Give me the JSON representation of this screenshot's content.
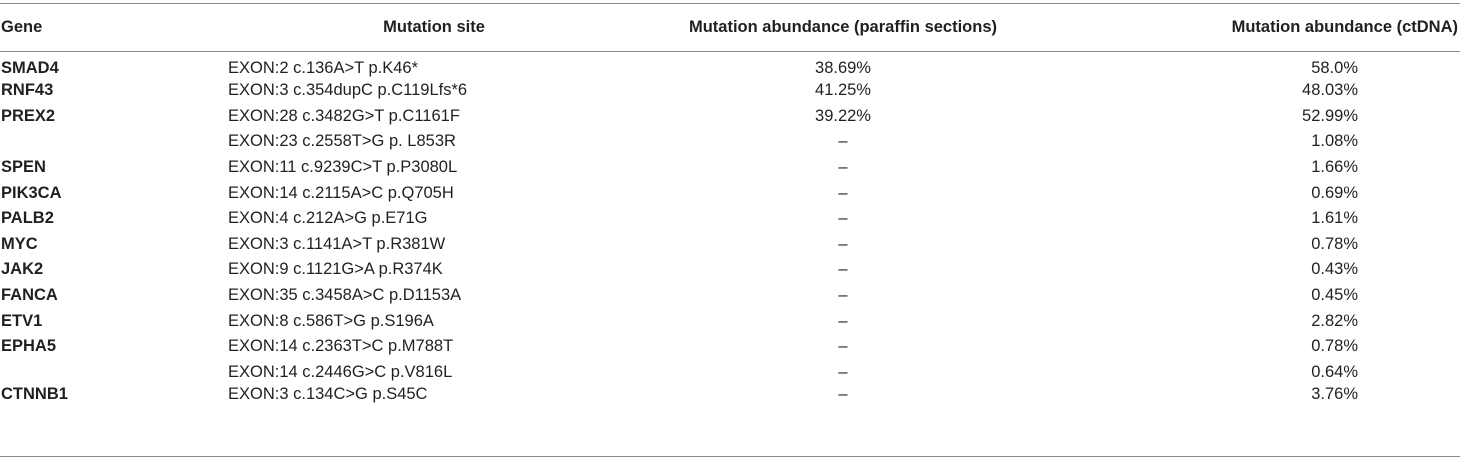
{
  "table": {
    "headers": {
      "gene": "Gene",
      "site": "Mutation site",
      "paraffin": "Mutation abundance (paraffin sections)",
      "ctdna": "Mutation abundance (ctDNA)"
    },
    "rows": [
      {
        "gene": "SMAD4",
        "site": "EXON:2 c.136A>T p.K46*",
        "paraffin": "38.69%",
        "ctdna": "58.0%"
      },
      {
        "gene": "RNF43",
        "site": "EXON:3 c.354dupC p.C119Lfs*6",
        "paraffin": "41.25%",
        "ctdna": "48.03%"
      },
      {
        "gene": "PREX2",
        "site": "EXON:28 c.3482G>T p.C1161F",
        "paraffin": "39.22%",
        "ctdna": "52.99%"
      },
      {
        "gene": "",
        "site": "EXON:23 c.2558T>G p. L853R",
        "paraffin": "–",
        "ctdna": "1.08%"
      },
      {
        "gene": "SPEN",
        "site": "EXON:11 c.9239C>T p.P3080L",
        "paraffin": "–",
        "ctdna": "1.66%"
      },
      {
        "gene": "PIK3CA",
        "site": "EXON:14 c.2115A>C p.Q705H",
        "paraffin": "–",
        "ctdna": "0.69%"
      },
      {
        "gene": "PALB2",
        "site": "EXON:4 c.212A>G p.E71G",
        "paraffin": "–",
        "ctdna": "1.61%"
      },
      {
        "gene": "MYC",
        "site": "EXON:3 c.1141A>T p.R381W",
        "paraffin": "–",
        "ctdna": "0.78%"
      },
      {
        "gene": "JAK2",
        "site": "EXON:9 c.1121G>A p.R374K",
        "paraffin": "–",
        "ctdna": "0.43%"
      },
      {
        "gene": "FANCA",
        "site": "EXON:35 c.3458A>C p.D1153A",
        "paraffin": "–",
        "ctdna": "0.45%"
      },
      {
        "gene": "ETV1",
        "site": "EXON:8 c.586T>G p.S196A",
        "paraffin": "–",
        "ctdna": "2.82%"
      },
      {
        "gene": "EPHA5",
        "site": "EXON:14 c.2363T>C p.M788T",
        "paraffin": "–",
        "ctdna": "0.78%"
      },
      {
        "gene": "",
        "site": "EXON:14 c.2446G>C p.V816L",
        "paraffin": "–",
        "ctdna": "0.64%"
      },
      {
        "gene": "CTNNB1",
        "site": "EXON:3 c.134C>G p.S45C",
        "paraffin": "–",
        "ctdna": "3.76%"
      }
    ]
  }
}
